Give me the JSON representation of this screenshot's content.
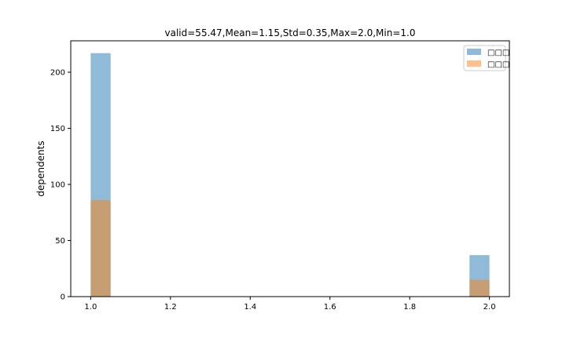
{
  "chart_data": {
    "type": "bar",
    "title": "valid=55.47,Mean=1.15,Std=0.35,Max=2.0,Min=1.0",
    "xlabel": "",
    "ylabel": "dependents",
    "xlim": [
      0.95,
      2.05
    ],
    "ylim": [
      0,
      228
    ],
    "xticks": [
      "1.0",
      "1.2",
      "1.4",
      "1.6",
      "1.8",
      "2.0"
    ],
    "yticks": [
      "0",
      "50",
      "100",
      "150",
      "200"
    ],
    "grid": false,
    "legend_position": "top-right",
    "bin_width": 0.05,
    "series": [
      {
        "name": "□□□",
        "color": "#1f77b4",
        "alpha": 0.5,
        "bins": [
          {
            "x0": 1.0,
            "x1": 1.05,
            "value": 217
          },
          {
            "x0": 1.95,
            "x1": 2.0,
            "value": 37
          }
        ]
      },
      {
        "name": "□□□",
        "color": "#ff7f0e",
        "alpha": 0.5,
        "bins": [
          {
            "x0": 1.0,
            "x1": 1.05,
            "value": 86
          },
          {
            "x0": 1.95,
            "x1": 2.0,
            "value": 15
          }
        ]
      }
    ]
  }
}
